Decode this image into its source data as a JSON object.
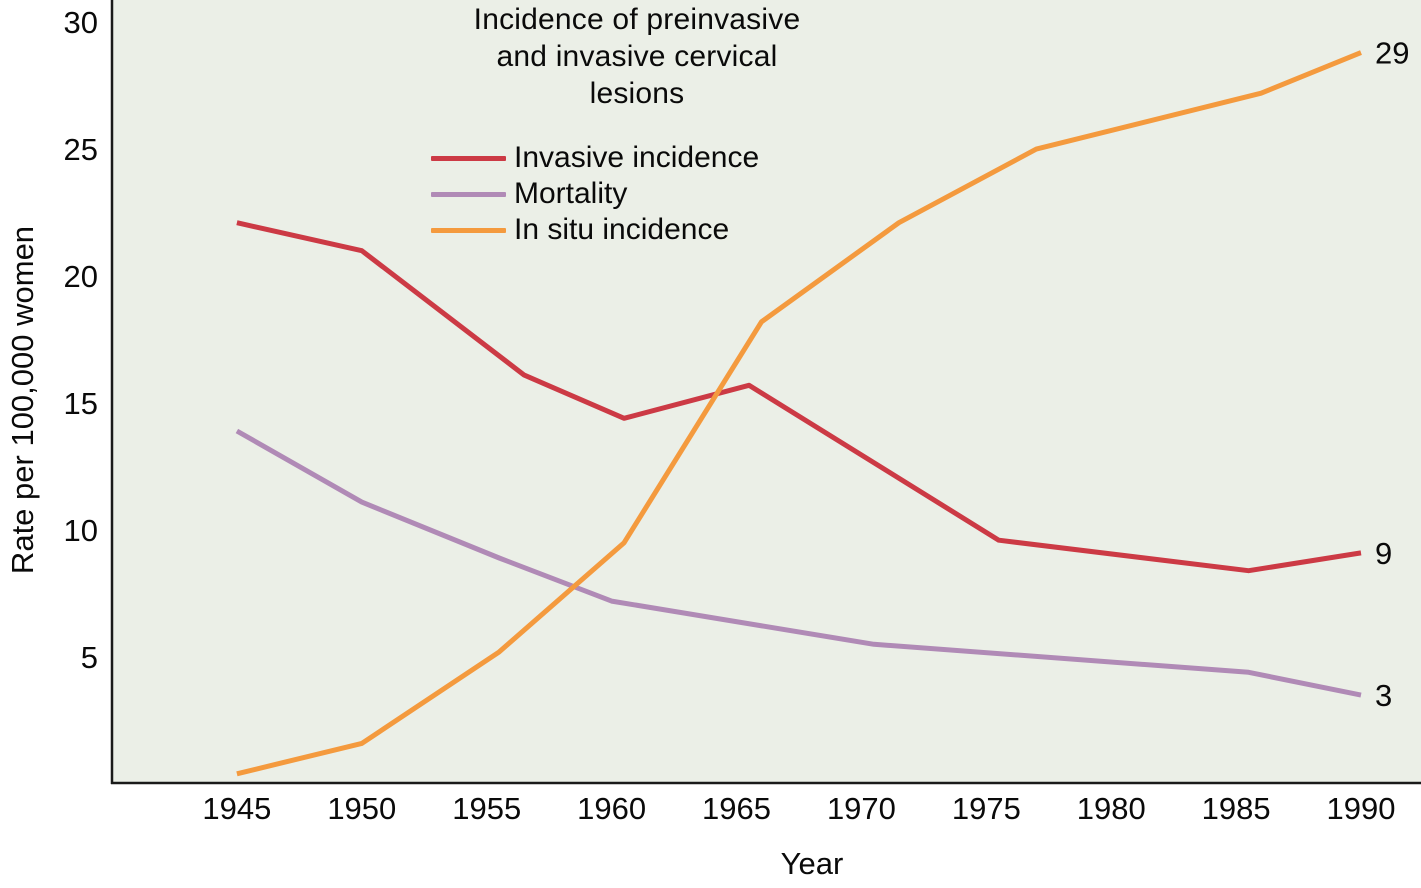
{
  "figure": {
    "title": "Incidence of preinvasive\nand invasive cervical\nlesions",
    "x_axis_label": "Year",
    "y_axis_label": "Rate per 100,000 women"
  },
  "chart_data": {
    "type": "line",
    "title": "Incidence of preinvasive and invasive cervical lesions",
    "xlabel": "Year",
    "ylabel": "Rate per 100,000 women",
    "x_ticks": [
      1945,
      1950,
      1955,
      1960,
      1965,
      1970,
      1975,
      1980,
      1985,
      1990
    ],
    "y_ticks": [
      5,
      10,
      15,
      20,
      25,
      30
    ],
    "xlim": [
      1940,
      1992.4
    ],
    "ylim": [
      0,
      30.87
    ],
    "grid": false,
    "legend_position": "top-center-inside",
    "colors": {
      "plot_background": "#ebefe7",
      "page_background": "#ffffff",
      "axis": "#1a1a1a",
      "text": "#0a0a0a"
    },
    "series": [
      {
        "name": "Invasive incidence",
        "color": "#cc3a45",
        "end_label": "9",
        "points": [
          [
            1945,
            22.1
          ],
          [
            1950,
            21.0
          ],
          [
            1956.5,
            16.1
          ],
          [
            1960.5,
            14.4
          ],
          [
            1965.5,
            15.7
          ],
          [
            1975.5,
            9.6
          ],
          [
            1985.5,
            8.4
          ],
          [
            1990,
            9.1
          ]
        ]
      },
      {
        "name": "Mortality",
        "color": "#b08ab6",
        "end_label": "3",
        "points": [
          [
            1945,
            13.9
          ],
          [
            1950,
            11.1
          ],
          [
            1955.5,
            8.9
          ],
          [
            1960,
            7.2
          ],
          [
            1970.5,
            5.5
          ],
          [
            1985.5,
            4.4
          ],
          [
            1990,
            3.5
          ]
        ]
      },
      {
        "name": "In situ incidence",
        "color": "#f49a3e",
        "end_label": "29",
        "points": [
          [
            1945,
            0.4
          ],
          [
            1950,
            1.6
          ],
          [
            1955.5,
            5.2
          ],
          [
            1960.5,
            9.5
          ],
          [
            1966,
            18.2
          ],
          [
            1971.5,
            22.1
          ],
          [
            1977,
            25.0
          ],
          [
            1986,
            27.2
          ],
          [
            1990,
            28.8
          ]
        ]
      }
    ]
  }
}
